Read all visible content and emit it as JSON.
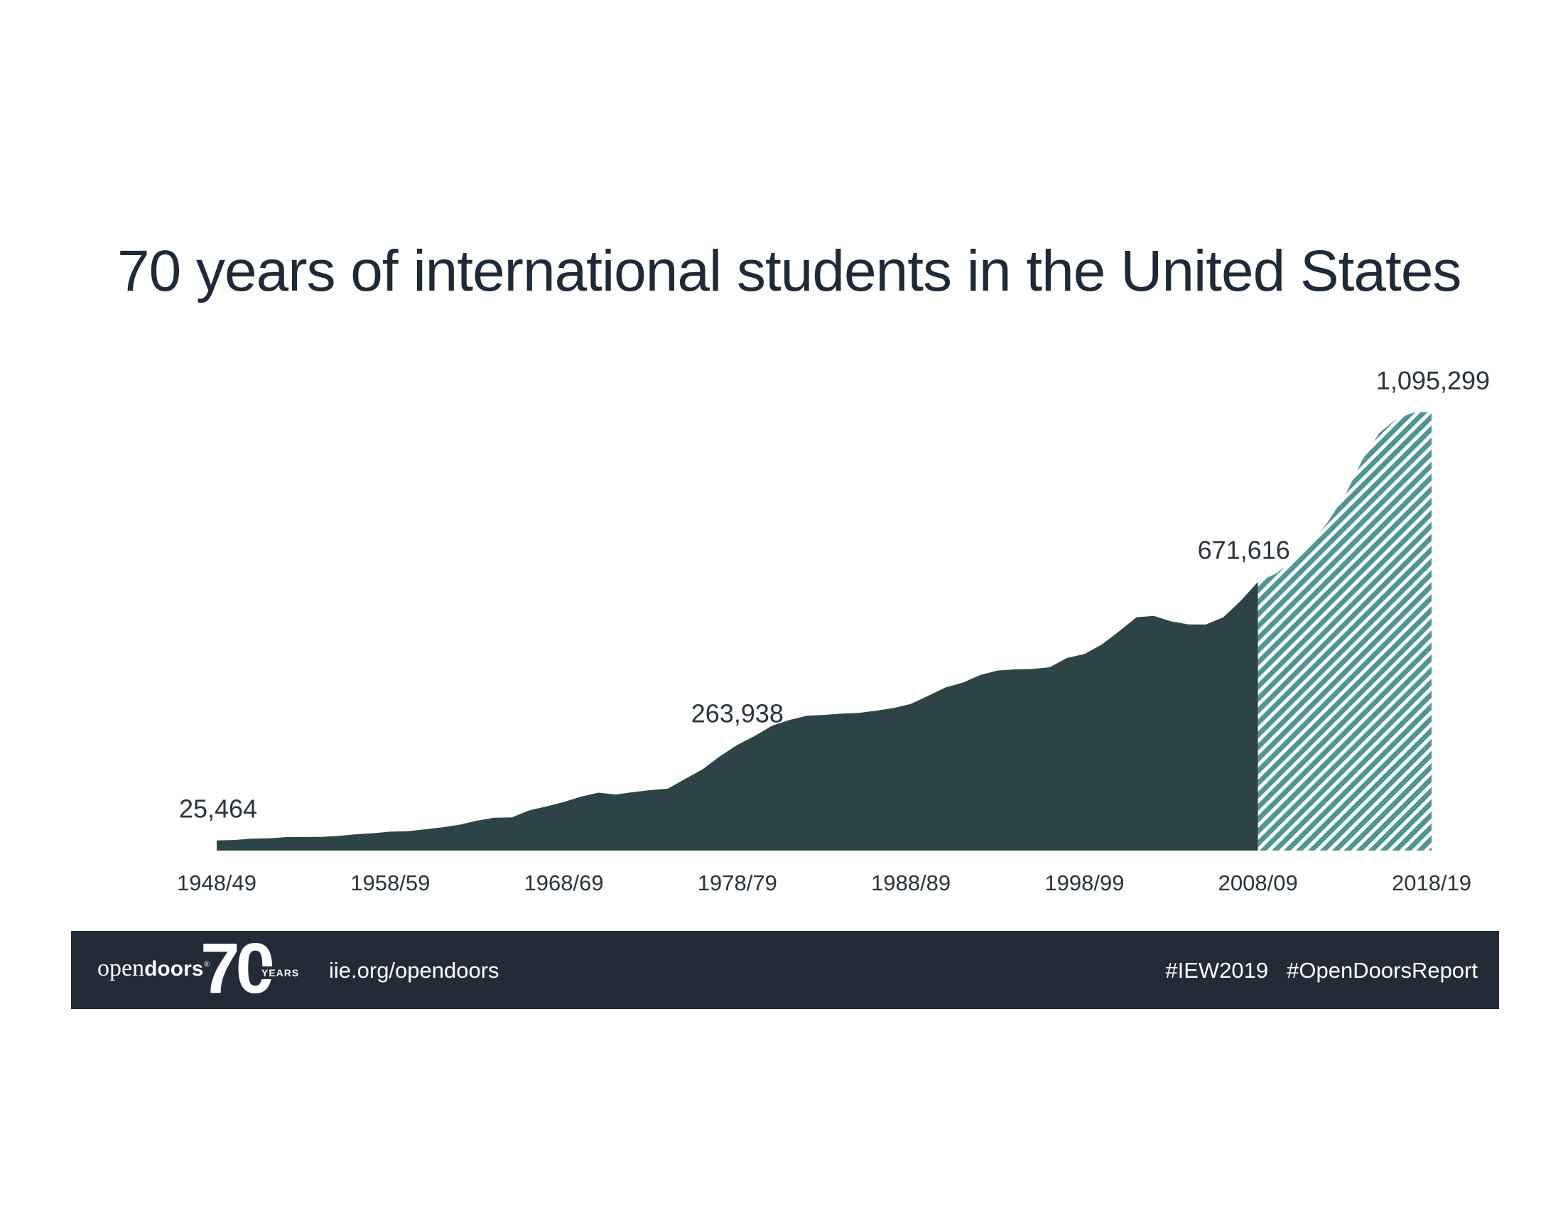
{
  "chart_data": {
    "type": "area",
    "title": "70 years of international students in the United States",
    "xlabel": "",
    "ylabel": "",
    "x": [
      "1948/49",
      "1949/50",
      "1950/51",
      "1951/52",
      "1952/53",
      "1953/54",
      "1954/55",
      "1955/56",
      "1956/57",
      "1957/58",
      "1958/59",
      "1959/60",
      "1960/61",
      "1961/62",
      "1962/63",
      "1963/64",
      "1964/65",
      "1965/66",
      "1966/67",
      "1967/68",
      "1968/69",
      "1969/70",
      "1970/71",
      "1971/72",
      "1972/73",
      "1973/74",
      "1974/75",
      "1975/76",
      "1976/77",
      "1977/78",
      "1978/79",
      "1979/80",
      "1980/81",
      "1981/82",
      "1982/83",
      "1983/84",
      "1984/85",
      "1985/86",
      "1986/87",
      "1987/88",
      "1988/89",
      "1989/90",
      "1990/91",
      "1991/92",
      "1992/93",
      "1993/94",
      "1994/95",
      "1995/96",
      "1996/97",
      "1997/98",
      "1998/99",
      "1999/00",
      "2000/01",
      "2001/02",
      "2002/03",
      "2003/04",
      "2004/05",
      "2005/06",
      "2006/07",
      "2007/08",
      "2008/09",
      "2009/10",
      "2010/11",
      "2011/12",
      "2012/13",
      "2013/14",
      "2014/15",
      "2015/16",
      "2016/17",
      "2017/18",
      "2018/19"
    ],
    "xtick_labels": [
      "1948/49",
      "1958/59",
      "1968/69",
      "1978/79",
      "1988/89",
      "1998/99",
      "2008/09",
      "2018/19"
    ],
    "ylim": [
      0,
      1095299
    ],
    "series": [
      {
        "values": [
          25464,
          26433,
          29813,
          30462,
          33675,
          33833,
          34232,
          36494,
          40666,
          43391,
          47245,
          48486,
          53107,
          58086,
          64705,
          74814,
          82045,
          82709,
          100262,
          110315,
          121362,
          134959,
          144708,
          140126,
          146097,
          151066,
          154580,
          179344,
          203068,
          235509,
          263938,
          286343,
          311882,
          326299,
          336985,
          338894,
          342113,
          343777,
          349609,
          356187,
          366354,
          386851,
          407529,
          419585,
          438618,
          449749,
          452635,
          453787,
          457984,
          481280,
          490933,
          514723,
          547867,
          582996,
          586323,
          572509,
          565039,
          564766,
          582984,
          623805,
          671616,
          690923,
          723277,
          764495,
          819644,
          886052,
          974926,
          1043839,
          1078822,
          1094792,
          1095299
        ]
      }
    ],
    "data_labels": [
      {
        "x": "1948/49",
        "text": "25,464"
      },
      {
        "x": "1978/79",
        "text": "263,938"
      },
      {
        "x": "2008/09",
        "text": "671,616"
      },
      {
        "x": "2018/19",
        "text": "1,095,299"
      }
    ],
    "hatched_from": "2008/09",
    "colors": {
      "solid_area": "#2c4446",
      "hatch_fill": "#ffffff",
      "hatch_stripe": "#4e9694",
      "title": "#1f2a38",
      "footer_bg": "#222b36"
    },
    "grid": false,
    "legend": "none"
  },
  "footer": {
    "logo_prefix": "open",
    "logo_brand": "doors",
    "logo_mark": "®",
    "logo_number": "70",
    "logo_years": "YEARS",
    "url": "iie.org/opendoors",
    "hashtags": [
      "#IEW2019",
      "#OpenDoorsReport"
    ]
  }
}
